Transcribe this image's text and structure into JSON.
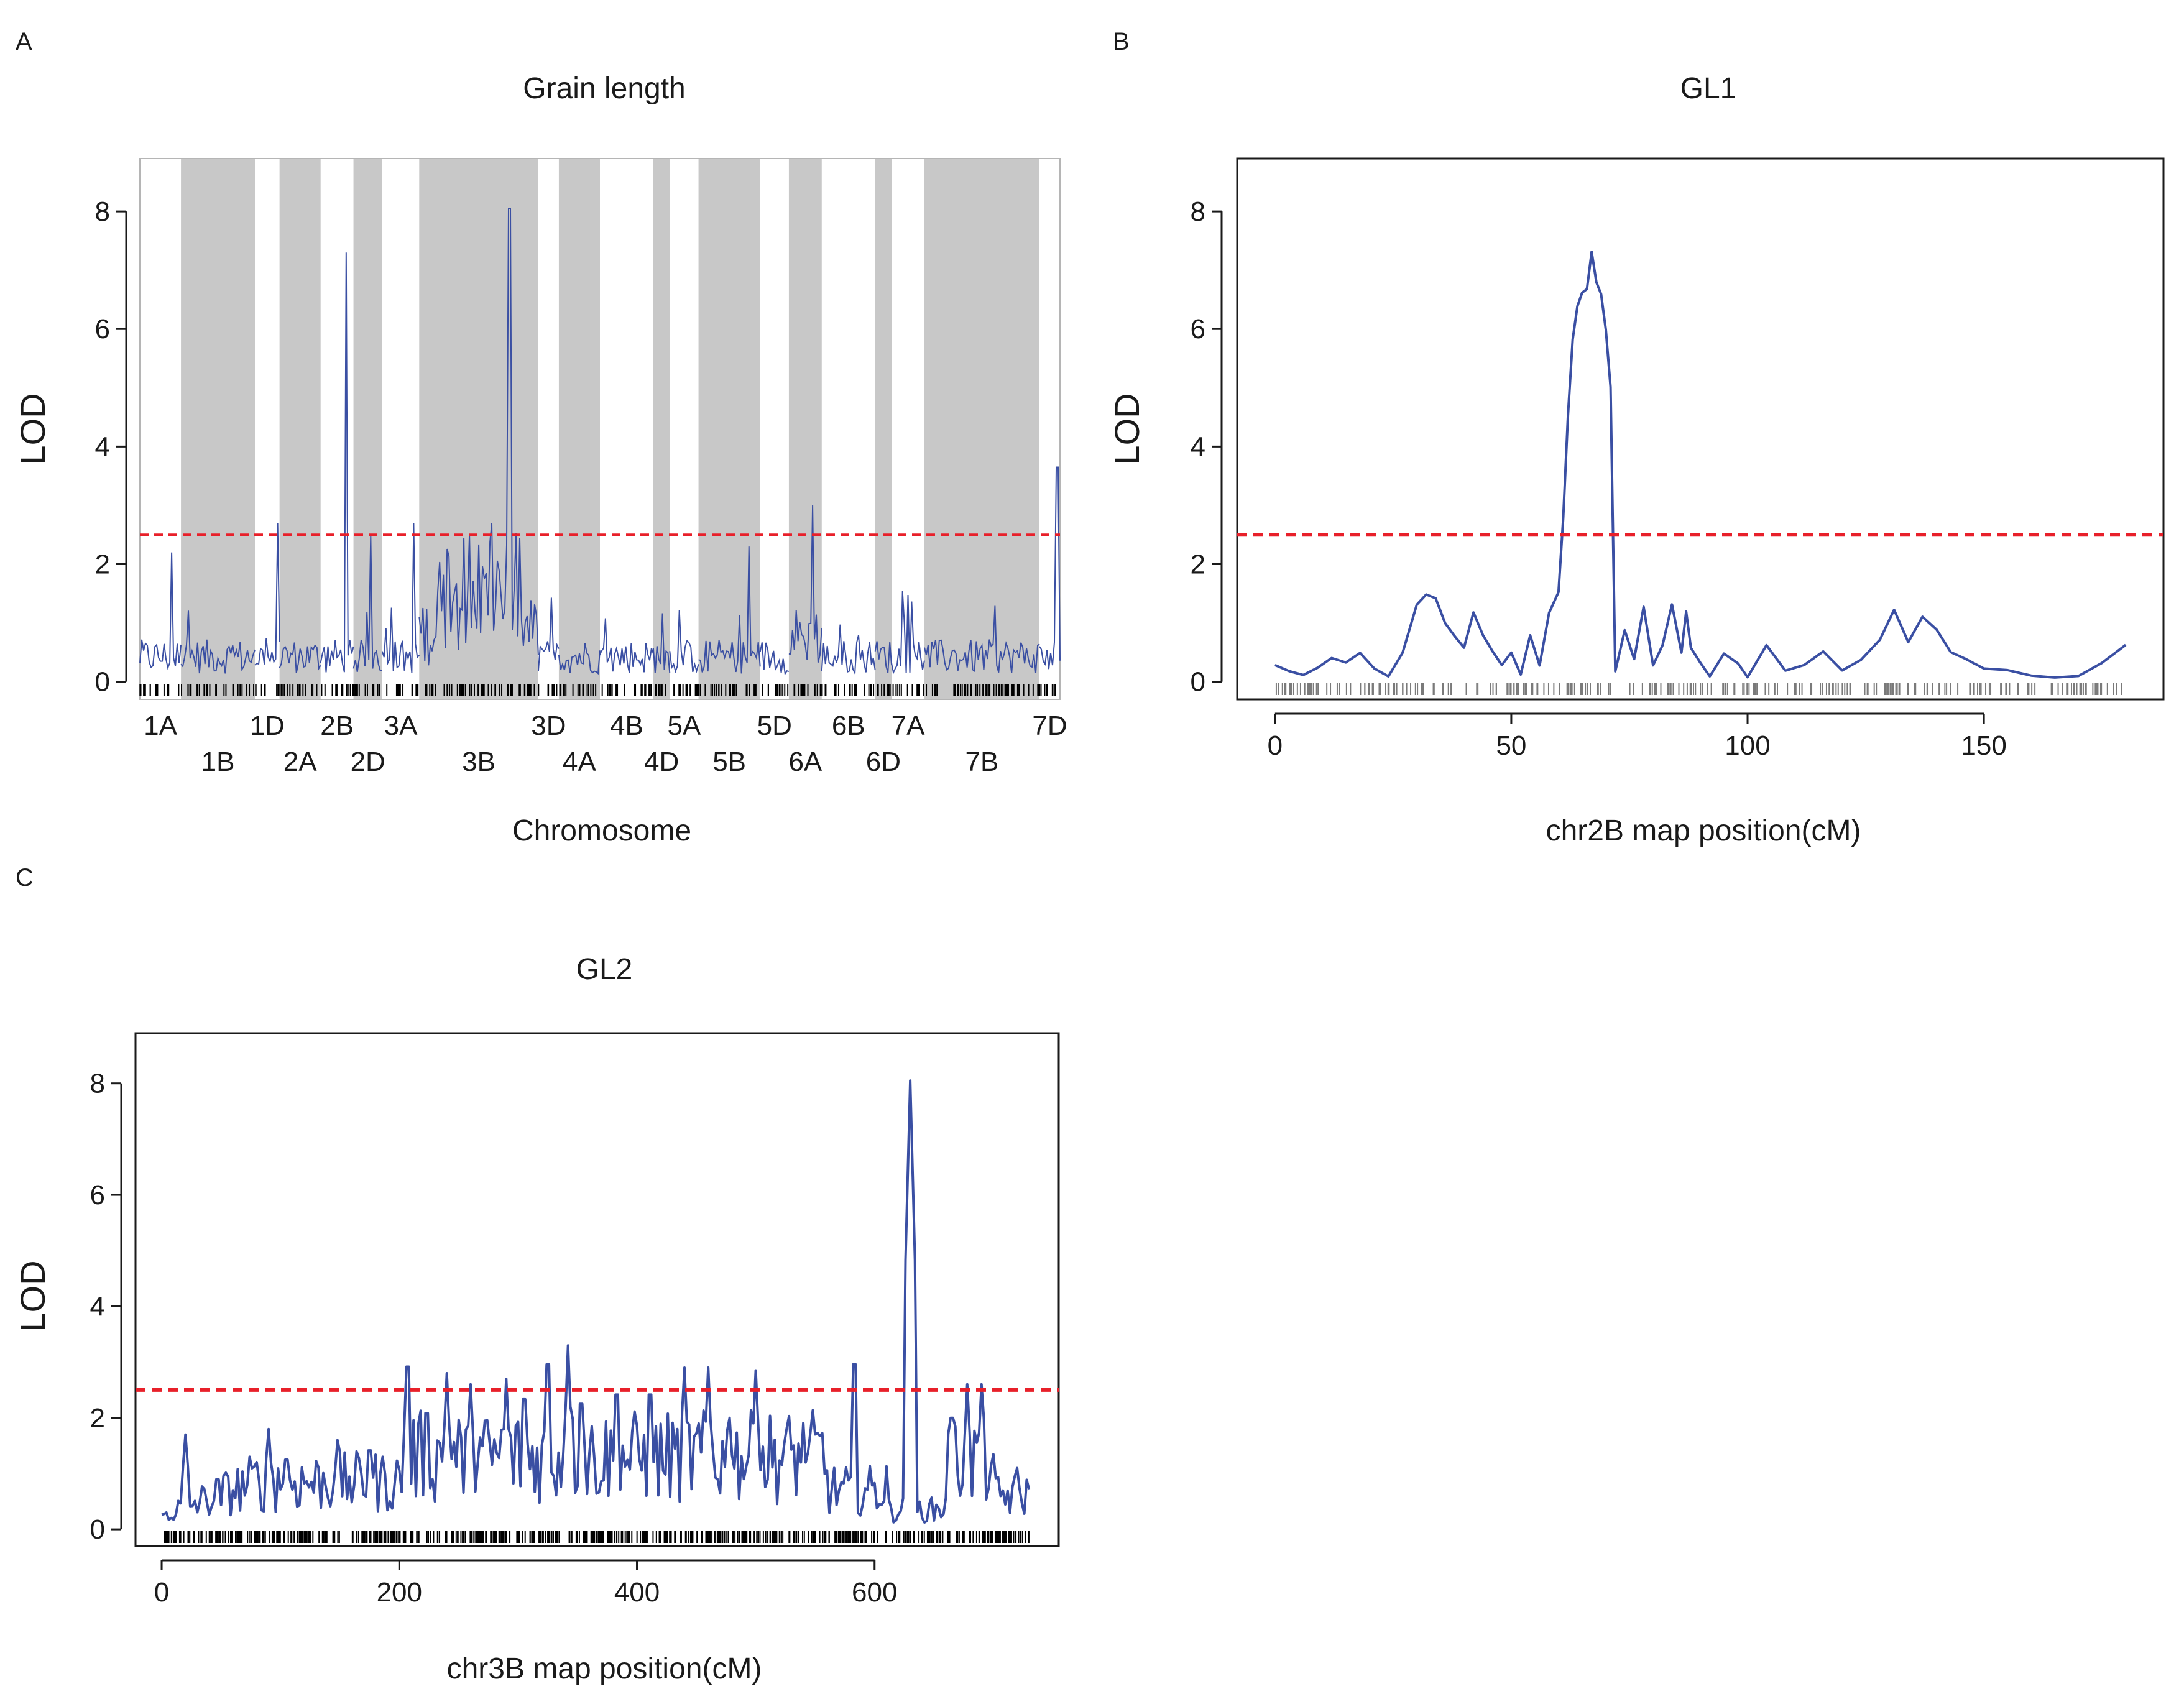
{
  "panel_letters": [
    "A",
    "B",
    "C"
  ],
  "colors": {
    "trace": "#3a4fa3",
    "threshold": "#e8202a",
    "shade": "#c8c8c8",
    "axis": "#1a1a1a"
  },
  "chart_data": [
    {
      "id": "A",
      "type": "line",
      "title": "Grain length",
      "xlabel": "Chromosome",
      "ylabel": "LOD",
      "ylim": [
        -0.3,
        8.9
      ],
      "yticks": [
        0,
        2,
        4,
        6,
        8
      ],
      "threshold": 2.5,
      "grid": false,
      "chromosomes": [
        {
          "name": "1A",
          "len": 10,
          "shaded": false,
          "row": 1
        },
        {
          "name": "1B",
          "len": 18,
          "shaded": true,
          "row": 2
        },
        {
          "name": "1D",
          "len": 6,
          "shaded": false,
          "row": 1
        },
        {
          "name": "2A",
          "len": 10,
          "shaded": true,
          "row": 2
        },
        {
          "name": "2B",
          "len": 8,
          "shaded": false,
          "row": 1
        },
        {
          "name": "2D",
          "len": 7,
          "shaded": true,
          "row": 2
        },
        {
          "name": "3A",
          "len": 9,
          "shaded": false,
          "row": 1
        },
        {
          "name": "3B",
          "len": 29,
          "shaded": true,
          "row": 2
        },
        {
          "name": "3D",
          "len": 5,
          "shaded": false,
          "row": 1
        },
        {
          "name": "4A",
          "len": 10,
          "shaded": true,
          "row": 2
        },
        {
          "name": "4B",
          "len": 13,
          "shaded": false,
          "row": 1
        },
        {
          "name": "4D",
          "len": 4,
          "shaded": true,
          "row": 2
        },
        {
          "name": "5A",
          "len": 7,
          "shaded": false,
          "row": 1
        },
        {
          "name": "5B",
          "len": 15,
          "shaded": true,
          "row": 2
        },
        {
          "name": "5D",
          "len": 7,
          "shaded": false,
          "row": 1
        },
        {
          "name": "6A",
          "len": 8,
          "shaded": true,
          "row": 2
        },
        {
          "name": "6B",
          "len": 13,
          "shaded": false,
          "row": 1
        },
        {
          "name": "6D",
          "len": 4,
          "shaded": true,
          "row": 2
        },
        {
          "name": "7A",
          "len": 8,
          "shaded": false,
          "row": 1
        },
        {
          "name": "7B",
          "len": 28,
          "shaded": true,
          "row": 2
        },
        {
          "name": "7D",
          "len": 5,
          "shaded": false,
          "row": 1
        }
      ],
      "peaks": [
        {
          "chr": "1A",
          "lod": 2.2
        },
        {
          "chr": "1D",
          "lod": 2.7
        },
        {
          "chr": "2B",
          "lod": 7.3
        },
        {
          "chr": "2D",
          "lod": 2.5
        },
        {
          "chr": "3A",
          "lod": 2.7
        },
        {
          "chr": "3B",
          "lod": 8.05
        },
        {
          "chr": "5B",
          "lod": 2.3
        },
        {
          "chr": "6A",
          "lod": 3.0
        },
        {
          "chr": "7D",
          "lod": 3.65
        }
      ]
    },
    {
      "id": "B",
      "type": "line",
      "title": "GL1",
      "xlabel": "chr2B map position(cM)",
      "ylabel": "LOD",
      "xlim": [
        -8,
        188
      ],
      "ylim": [
        -0.3,
        8.9
      ],
      "xticks": [
        0,
        50,
        100,
        150
      ],
      "yticks": [
        0,
        2,
        4,
        6,
        8
      ],
      "threshold": 2.5,
      "grid": false,
      "x": [
        0,
        3,
        6,
        9,
        12,
        15,
        18,
        21,
        24,
        27,
        30,
        32,
        34,
        36,
        38,
        40,
        42,
        44,
        46,
        48,
        50,
        52,
        54,
        56,
        58,
        60,
        61,
        62,
        63,
        64,
        65,
        66,
        67,
        68,
        69,
        70,
        71,
        72,
        74,
        76,
        78,
        80,
        82,
        84,
        86,
        87,
        88,
        90,
        92,
        95,
        98,
        100,
        104,
        108,
        112,
        116,
        120,
        124,
        128,
        131,
        134,
        137,
        140,
        143,
        146,
        150,
        155,
        160,
        165,
        170,
        175,
        180
      ],
      "y": [
        0.3,
        0.2,
        0.1,
        0.25,
        0.4,
        0.3,
        0.5,
        0.2,
        0.1,
        0.5,
        1.3,
        1.5,
        1.4,
        1.0,
        0.8,
        0.6,
        1.2,
        0.8,
        0.5,
        0.3,
        0.5,
        0.1,
        0.8,
        0.3,
        1.2,
        1.5,
        2.8,
        4.5,
        5.8,
        6.4,
        6.6,
        6.7,
        7.3,
        6.8,
        6.6,
        6.0,
        5.0,
        0.2,
        0.9,
        0.4,
        1.3,
        0.3,
        0.6,
        1.3,
        0.5,
        1.2,
        0.6,
        0.3,
        0.1,
        0.5,
        0.3,
        0.1,
        0.6,
        0.2,
        0.3,
        0.5,
        0.2,
        0.4,
        0.7,
        1.2,
        0.7,
        1.1,
        0.9,
        0.5,
        0.4,
        0.2,
        0.2,
        0.1,
        0.1,
        0.1,
        0.3,
        0.6
      ]
    },
    {
      "id": "C",
      "type": "line",
      "title": "GL2",
      "xlabel": "chr3B map position(cM)",
      "ylabel": "LOD",
      "xlim": [
        -22,
        755
      ],
      "ylim": [
        -0.3,
        8.9
      ],
      "xticks": [
        0,
        200,
        400,
        600
      ],
      "yticks": [
        0,
        2,
        4,
        6,
        8
      ],
      "threshold": 2.5,
      "grid": false,
      "peaks": [
        {
          "x": 20,
          "lod": 1.7
        },
        {
          "x": 90,
          "lod": 1.8
        },
        {
          "x": 105,
          "lod": 1.5
        },
        {
          "x": 148,
          "lod": 1.6
        },
        {
          "x": 175,
          "lod": 1.7
        },
        {
          "x": 207,
          "lod": 3.5
        },
        {
          "x": 223,
          "lod": 2.5
        },
        {
          "x": 240,
          "lod": 2.8
        },
        {
          "x": 260,
          "lod": 2.6
        },
        {
          "x": 290,
          "lod": 2.7
        },
        {
          "x": 305,
          "lod": 2.8
        },
        {
          "x": 325,
          "lod": 3.55
        },
        {
          "x": 342,
          "lod": 3.3
        },
        {
          "x": 353,
          "lod": 2.7
        },
        {
          "x": 383,
          "lod": 2.9
        },
        {
          "x": 411,
          "lod": 2.9
        },
        {
          "x": 440,
          "lod": 2.9
        },
        {
          "x": 460,
          "lod": 2.9
        },
        {
          "x": 478,
          "lod": 2.0
        },
        {
          "x": 500,
          "lod": 2.85
        },
        {
          "x": 540,
          "lod": 1.8
        },
        {
          "x": 583,
          "lod": 3.55
        },
        {
          "x": 630,
          "lod": 8.05
        },
        {
          "x": 665,
          "lod": 2.4
        },
        {
          "x": 678,
          "lod": 2.6
        },
        {
          "x": 690,
          "lod": 2.6
        },
        {
          "x": 720,
          "lod": 1.1
        }
      ]
    }
  ]
}
